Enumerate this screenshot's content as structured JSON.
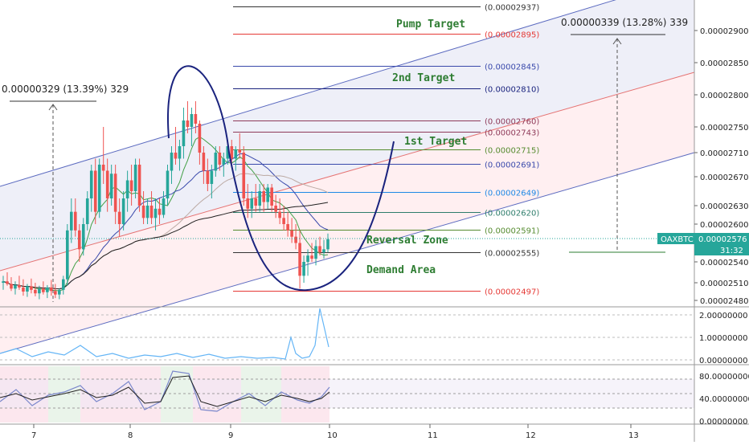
{
  "symbol": "OAXBTC",
  "last_price": "0.00002576",
  "countdown": "31:32",
  "measure_left": "0.00000329 (13.39%) 329",
  "measure_right": "0.00000339 (13.28%) 339",
  "annotations": {
    "pump_target": "Pump Target",
    "second_target": "2nd Target",
    "first_target": "1st Target",
    "reversal_zone": "Reversal Zone",
    "demand_area": "Demand Area"
  },
  "colors": {
    "bull": "#26a69a",
    "bear": "#ef5350",
    "annotation_text": "#2e7d32",
    "curve": "#1a237e",
    "channel_upper": "#5c6bc0",
    "channel_mid": "#e57373",
    "price_tag": "#26a69a"
  },
  "chart_data": {
    "type": "candlestick",
    "x_ticks": [
      "7",
      "8",
      "9",
      "10",
      "11",
      "12",
      "13"
    ],
    "price_axis": {
      "ticks": [
        "0.00002900",
        "0.00002850",
        "0.00002800",
        "0.00002750",
        "0.00002710",
        "0.00002670",
        "0.00002630",
        "0.00002600",
        "0.00002540",
        "0.00002510",
        "0.00002480"
      ],
      "range": [
        2.47e-05,
        2.95e-05
      ]
    },
    "levels": [
      {
        "label": "(0.00002937)",
        "value": 2.937e-05,
        "color": "#333333"
      },
      {
        "label": "(0.00002895)",
        "value": 2.895e-05,
        "color": "#e53935"
      },
      {
        "label": "(0.00002845)",
        "value": 2.845e-05,
        "color": "#3949ab"
      },
      {
        "label": "(0.00002810)",
        "value": 2.81e-05,
        "color": "#1a237e"
      },
      {
        "label": "(0.00002760)",
        "value": 2.76e-05,
        "color": "#8e3a59"
      },
      {
        "label": "(0.00002743)",
        "value": 2.743e-05,
        "color": "#8e3a59"
      },
      {
        "label": "(0.00002715)",
        "value": 2.715e-05,
        "color": "#558b2f"
      },
      {
        "label": "(0.00002691)",
        "value": 2.691e-05,
        "color": "#3949ab"
      },
      {
        "label": "(0.00002649)",
        "value": 2.649e-05,
        "color": "#1e88e5"
      },
      {
        "label": "(0.00002620)",
        "value": 2.62e-05,
        "color": "#2e7d6b"
      },
      {
        "label": "(0.00002591)",
        "value": 2.591e-05,
        "color": "#558b2f"
      },
      {
        "label": "(0.00002555)",
        "value": 2.555e-05,
        "color": "#333333"
      },
      {
        "label": "(0.00002497)",
        "value": 2.497e-05,
        "color": "#e53935"
      }
    ],
    "candles": [
      [
        2.51,
        2.52,
        2.498,
        2.512
      ],
      [
        2.512,
        2.525,
        2.505,
        2.508
      ],
      [
        2.508,
        2.518,
        2.496,
        2.5
      ],
      [
        2.5,
        2.512,
        2.49,
        2.506
      ],
      [
        2.506,
        2.52,
        2.498,
        2.502
      ],
      [
        2.502,
        2.515,
        2.488,
        2.495
      ],
      [
        2.495,
        2.508,
        2.486,
        2.504
      ],
      [
        2.504,
        2.516,
        2.492,
        2.498
      ],
      [
        2.498,
        2.51,
        2.487,
        2.492
      ],
      [
        2.492,
        2.505,
        2.482,
        2.5
      ],
      [
        2.5,
        2.512,
        2.49,
        2.494
      ],
      [
        2.494,
        2.506,
        2.484,
        2.502
      ],
      [
        2.502,
        2.514,
        2.488,
        2.496
      ],
      [
        2.496,
        2.508,
        2.484,
        2.49
      ],
      [
        2.49,
        2.5,
        2.482,
        2.498
      ],
      [
        2.498,
        2.52,
        2.49,
        2.515
      ],
      [
        2.515,
        2.6,
        2.505,
        2.59
      ],
      [
        2.59,
        2.64,
        2.57,
        2.62
      ],
      [
        2.62,
        2.64,
        2.58,
        2.59
      ],
      [
        2.59,
        2.6,
        2.54,
        2.56
      ],
      [
        2.56,
        2.61,
        2.55,
        2.6
      ],
      [
        2.6,
        2.65,
        2.59,
        2.64
      ],
      [
        2.64,
        2.69,
        2.62,
        2.68
      ],
      [
        2.68,
        2.7,
        2.6,
        2.62
      ],
      [
        2.62,
        2.7,
        2.61,
        2.69
      ],
      [
        2.69,
        2.75,
        2.66,
        2.68
      ],
      [
        2.68,
        2.7,
        2.62,
        2.64
      ],
      [
        2.64,
        2.69,
        2.63,
        2.675
      ],
      [
        2.675,
        2.69,
        2.6,
        2.62
      ],
      [
        2.62,
        2.64,
        2.58,
        2.6
      ],
      [
        2.6,
        2.65,
        2.59,
        2.64
      ],
      [
        2.64,
        2.68,
        2.62,
        2.665
      ],
      [
        2.665,
        2.69,
        2.63,
        2.65
      ],
      [
        2.65,
        2.7,
        2.64,
        2.69
      ],
      [
        2.69,
        2.7,
        2.62,
        2.63
      ],
      [
        2.63,
        2.65,
        2.6,
        2.61
      ],
      [
        2.61,
        2.64,
        2.6,
        2.63
      ],
      [
        2.63,
        2.65,
        2.6,
        2.61
      ],
      [
        2.61,
        2.64,
        2.59,
        2.625
      ],
      [
        2.625,
        2.64,
        2.6,
        2.615
      ],
      [
        2.615,
        2.65,
        2.61,
        2.64
      ],
      [
        2.64,
        2.69,
        2.63,
        2.68
      ],
      [
        2.68,
        2.72,
        2.66,
        2.71
      ],
      [
        2.71,
        2.75,
        2.69,
        2.7
      ],
      [
        2.7,
        2.73,
        2.68,
        2.72
      ],
      [
        2.72,
        2.78,
        2.7,
        2.76
      ],
      [
        2.76,
        2.79,
        2.74,
        2.75
      ],
      [
        2.75,
        2.78,
        2.72,
        2.77
      ],
      [
        2.77,
        2.79,
        2.74,
        2.755
      ],
      [
        2.755,
        2.76,
        2.69,
        2.71
      ],
      [
        2.71,
        2.72,
        2.66,
        2.68
      ],
      [
        2.68,
        2.7,
        2.65,
        2.66
      ],
      [
        2.66,
        2.69,
        2.64,
        2.68
      ],
      [
        2.68,
        2.72,
        2.67,
        2.71
      ],
      [
        2.71,
        2.72,
        2.68,
        2.69
      ],
      [
        2.69,
        2.71,
        2.67,
        2.7
      ],
      [
        2.7,
        2.73,
        2.69,
        2.72
      ],
      [
        2.72,
        2.73,
        2.69,
        2.7
      ],
      [
        2.7,
        2.72,
        2.68,
        2.715
      ],
      [
        2.715,
        2.74,
        2.7,
        2.71
      ],
      [
        2.71,
        2.72,
        2.63,
        2.64
      ],
      [
        2.64,
        2.66,
        2.61,
        2.625
      ],
      [
        2.625,
        2.65,
        2.61,
        2.64
      ],
      [
        2.64,
        2.66,
        2.62,
        2.63
      ],
      [
        2.63,
        2.66,
        2.62,
        2.65
      ],
      [
        2.65,
        2.66,
        2.62,
        2.635
      ],
      [
        2.635,
        2.66,
        2.625,
        2.655
      ],
      [
        2.655,
        2.66,
        2.62,
        2.63
      ],
      [
        2.63,
        2.645,
        2.61,
        2.62
      ],
      [
        2.62,
        2.64,
        2.6,
        2.61
      ],
      [
        2.61,
        2.63,
        2.59,
        2.6
      ],
      [
        2.6,
        2.62,
        2.58,
        2.59
      ],
      [
        2.59,
        2.61,
        2.57,
        2.58
      ],
      [
        2.58,
        2.6,
        2.56,
        2.57
      ],
      [
        2.57,
        2.59,
        2.5,
        2.52
      ],
      [
        2.52,
        2.55,
        2.51,
        2.54
      ],
      [
        2.54,
        2.56,
        2.52,
        2.55
      ],
      [
        2.55,
        2.57,
        2.54,
        2.545
      ],
      [
        2.545,
        2.575,
        2.535,
        2.565
      ],
      [
        2.565,
        2.58,
        2.55,
        2.555
      ],
      [
        2.555,
        2.575,
        2.545,
        2.56
      ],
      [
        2.56,
        2.585,
        2.555,
        2.576
      ]
    ]
  }
}
